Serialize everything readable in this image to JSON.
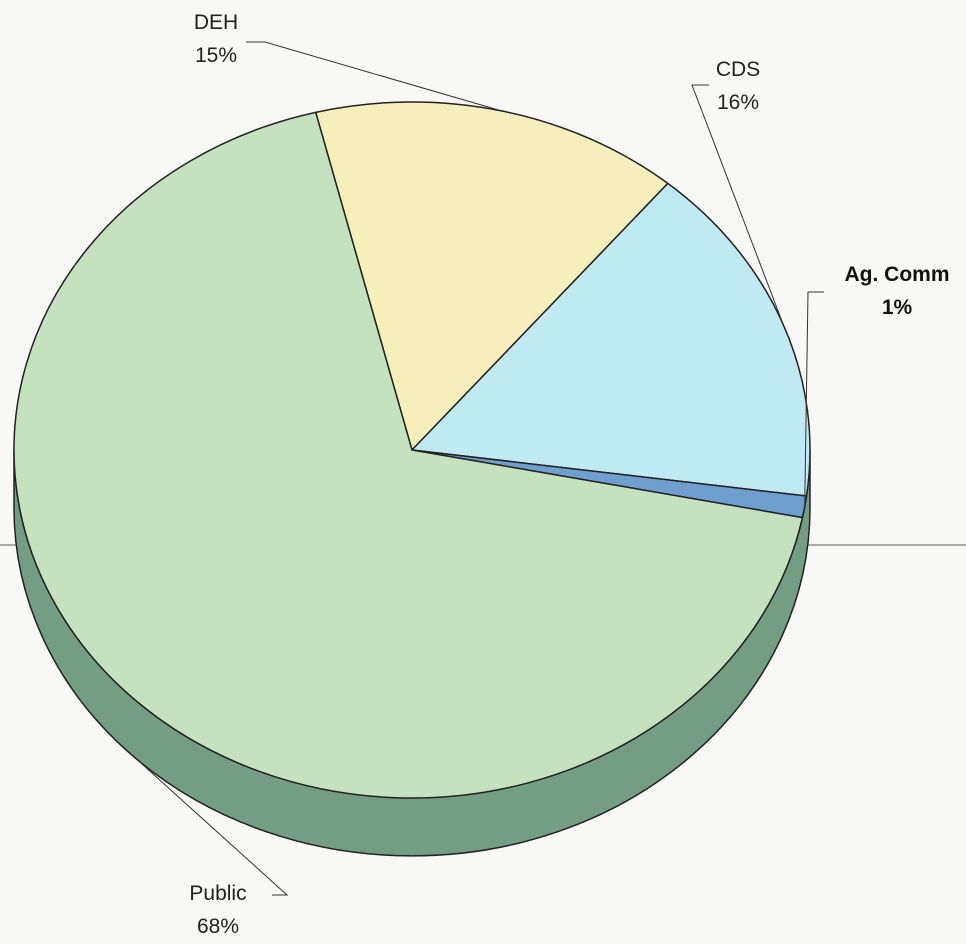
{
  "chart_data": {
    "type": "pie",
    "three_d": true,
    "title": "",
    "slices": [
      {
        "label": "DEH",
        "pct_text": "15%",
        "value": 15,
        "color": "#f7efbb"
      },
      {
        "label": "CDS",
        "pct_text": "16%",
        "value": 16,
        "color": "#bfeaf2"
      },
      {
        "label": "Ag. Comm",
        "pct_text": "1%",
        "value": 1,
        "color": "#6f9fcf"
      },
      {
        "label": "Public",
        "pct_text": "68%",
        "value": 68,
        "color": "#c4e2bd"
      }
    ],
    "side_color": "#739e84",
    "outline_color": "#222222",
    "background": "#f8f8f6"
  }
}
